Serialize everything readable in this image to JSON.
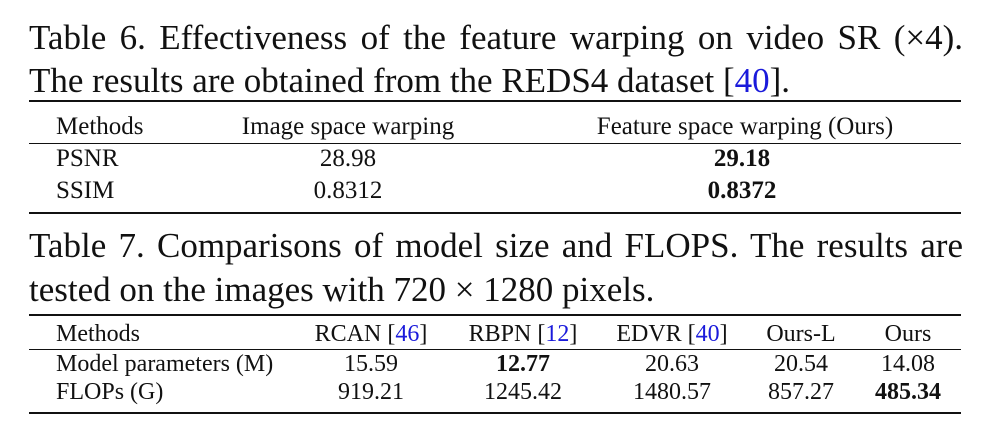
{
  "table6": {
    "caption_line1": "Table 6. Effectiveness of the feature warping on video SR (×4).",
    "caption_line2_prefix": "The results are obtained from the REDS4 dataset [",
    "caption_line2_ref": "40",
    "caption_line2_suffix": "].",
    "headers": [
      "Methods",
      "Image space warping",
      "Feature space warping (Ours)"
    ],
    "rows": [
      {
        "metric": "PSNR",
        "image_space": "28.98",
        "feature_space": "29.18"
      },
      {
        "metric": "SSIM",
        "image_space": "0.8312",
        "feature_space": "0.8372"
      }
    ]
  },
  "table7": {
    "caption_line1": "Table 7. Comparisons of model size and FLOPS. The results are",
    "caption_line2": "tested on the images with 720 × 1280 pixels.",
    "headers": {
      "methods": "Methods",
      "rcan": "RCAN",
      "rcan_ref": "46",
      "rbpn": "RBPN",
      "rbpn_ref": "12",
      "edvr": "EDVR",
      "edvr_ref": "40",
      "ours_l": "Ours-L",
      "ours": "Ours"
    },
    "rows": [
      {
        "label": "Model parameters (M)",
        "values": [
          "15.59",
          "12.77",
          "20.63",
          "20.54",
          "14.08"
        ]
      },
      {
        "label": "FLOPs (G)",
        "values": [
          "919.21",
          "1245.42",
          "1480.57",
          "857.27",
          "485.34"
        ]
      }
    ]
  },
  "colors": {
    "text": "#111111",
    "citation": "#1a1adb",
    "background": "#ffffff"
  }
}
